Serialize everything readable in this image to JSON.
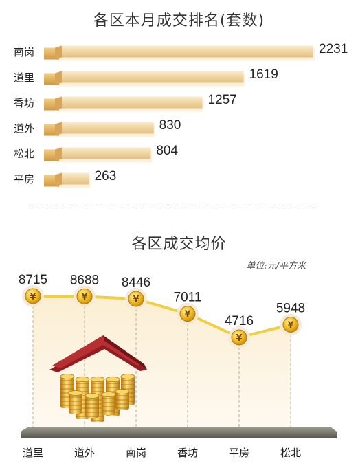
{
  "chart_data": [
    {
      "type": "bar",
      "title": "各区本月成交排名(套数)",
      "categories": [
        "南岗",
        "道里",
        "香坊",
        "道外",
        "松北",
        "平房"
      ],
      "values": [
        2231,
        1619,
        1257,
        830,
        804,
        263
      ]
    },
    {
      "type": "line",
      "title": "各区成交均价",
      "unit": "单位:元/平方米",
      "categories": [
        "道里",
        "道外",
        "南岗",
        "香坊",
        "平房",
        "松北"
      ],
      "values": [
        8715,
        8688,
        8446,
        7011,
        4716,
        5948
      ],
      "point_icon": "yen-coin-icon",
      "illustration": "coin-house-icon"
    }
  ],
  "colors": {
    "bar": "#f0d8a8",
    "bar_shadow": "#fbf1dd",
    "bar_tab": "#e0b36a",
    "line": "#f0cf42",
    "coin": "#e7a612",
    "roof": "#b72f31",
    "axis_base": "#6d6d63"
  }
}
